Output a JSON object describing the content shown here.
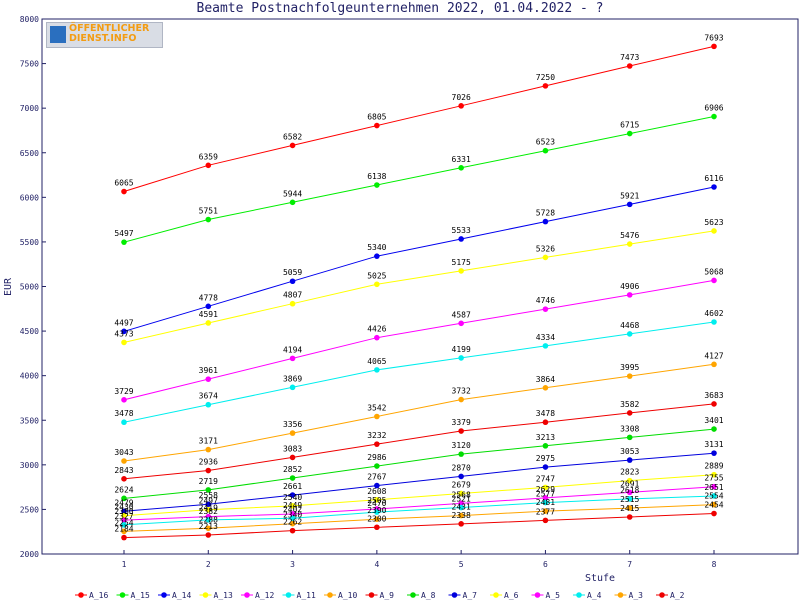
{
  "logo": {
    "line1": "ÖFFENTLICHER",
    "line2": "DIENST.INFO"
  },
  "chart_data": {
    "type": "line",
    "title": "Beamte Postnachfolgeunternehmen 2022, 01.04.2022 - ?",
    "xlabel": "Stufe",
    "ylabel": "EUR",
    "x": [
      1,
      2,
      3,
      4,
      5,
      6,
      7,
      8
    ],
    "ylim": [
      2000,
      8000
    ],
    "yticks": [
      2000,
      2500,
      3000,
      3500,
      4000,
      4500,
      5000,
      5500,
      6000,
      6500,
      7000,
      7500,
      8000
    ],
    "grid": false,
    "legend_position": "bottom",
    "series": [
      {
        "name": "A_16",
        "color": "#ff0000",
        "values": [
          6065,
          6359,
          6582,
          6805,
          7026,
          7250,
          7473,
          7693
        ]
      },
      {
        "name": "A_15",
        "color": "#00ee00",
        "values": [
          5497,
          5751,
          5944,
          6138,
          6331,
          6523,
          6715,
          6906
        ]
      },
      {
        "name": "A_14",
        "color": "#0000ee",
        "values": [
          4497,
          4778,
          5059,
          5340,
          5533,
          5728,
          5921,
          6116
        ]
      },
      {
        "name": "A_13",
        "color": "#ffff00",
        "values": [
          4373,
          4591,
          4807,
          5025,
          5175,
          5326,
          5476,
          5623
        ]
      },
      {
        "name": "A_12",
        "color": "#ff00ff",
        "values": [
          3729,
          3961,
          4194,
          4426,
          4587,
          4746,
          4906,
          5068
        ]
      },
      {
        "name": "A_11",
        "color": "#00eeee",
        "values": [
          3478,
          3674,
          3869,
          4065,
          4199,
          4334,
          4468,
          4602
        ]
      },
      {
        "name": "A_10",
        "color": "#ffa500",
        "values": [
          3043,
          3171,
          3356,
          3542,
          3732,
          3864,
          3995,
          4127
        ]
      },
      {
        "name": "A_9",
        "color": "#ee0000",
        "values": [
          2843,
          2936,
          3083,
          3232,
          3379,
          3478,
          3582,
          3683
        ]
      },
      {
        "name": "A_8",
        "color": "#00dd00",
        "values": [
          2624,
          2719,
          2852,
          2986,
          3120,
          3213,
          3308,
          3401
        ]
      },
      {
        "name": "A_7",
        "color": "#0000dd",
        "values": [
          2479,
          2558,
          2661,
          2767,
          2870,
          2975,
          3053,
          3131
        ]
      },
      {
        "name": "A_6",
        "color": "#ffff00",
        "values": [
          2430,
          2497,
          2540,
          2608,
          2679,
          2747,
          2823,
          2889
        ]
      },
      {
        "name": "A_5",
        "color": "#ff00ff",
        "values": [
          2380,
          2419,
          2449,
          2505,
          2568,
          2629,
          2691,
          2755
        ]
      },
      {
        "name": "A_4",
        "color": "#00eeee",
        "values": [
          2327,
          2382,
          2402,
          2470,
          2521,
          2577,
          2618,
          2651
        ]
      },
      {
        "name": "A_3",
        "color": "#ffa500",
        "values": [
          2254,
          2288,
          2340,
          2390,
          2431,
          2481,
          2515,
          2554
        ]
      },
      {
        "name": "A_2",
        "color": "#ee0000",
        "values": [
          2184,
          2213,
          2262,
          2300,
          2338,
          2377,
          2415,
          2454
        ]
      }
    ],
    "labels": [
      {
        "series": "A_16",
        "texts": [
          "6065",
          "6359",
          "6582",
          "6805",
          "7026",
          "7250",
          "7473",
          "7693"
        ]
      },
      {
        "series": "A_15",
        "texts": [
          "5497",
          "5751",
          "5944",
          "6138",
          "6331",
          "6523",
          "6715",
          "6906"
        ]
      },
      {
        "series": "A_14",
        "texts": [
          "4497",
          "4778",
          "5059",
          "5340",
          "5533",
          "5728",
          "5921",
          "6116"
        ]
      },
      {
        "series": "A_13",
        "texts": [
          "4373",
          "4591",
          "4807",
          "5025",
          "5175",
          "5326",
          "5476",
          "5623"
        ]
      },
      {
        "series": "A_12",
        "texts": [
          "3729",
          "3961",
          "4194",
          "4426",
          "4587",
          "4746",
          "4906",
          "5068"
        ]
      },
      {
        "series": "A_11",
        "texts": [
          "3478",
          "3674",
          "3869",
          "4065",
          "4199",
          "4334",
          "4468",
          "4602"
        ]
      },
      {
        "series": "A_10",
        "texts": [
          "3043",
          "3171",
          "3356",
          "3542",
          "3732",
          "3864",
          "3995",
          "4127"
        ]
      },
      {
        "series": "A_9",
        "texts": [
          "2843",
          "2936",
          "3083",
          "3232",
          "3379",
          "3478",
          "3582",
          "3683"
        ]
      },
      {
        "series": "A_8",
        "texts": [
          "2624",
          "2719",
          "2852",
          "2986",
          "3120",
          "3213",
          "3308",
          "3401"
        ]
      },
      {
        "series": "A_7",
        "texts": [
          "2479",
          "2558",
          "2661",
          "2767",
          "2870",
          "2975",
          "3053",
          "3131"
        ]
      },
      {
        "series": "A_6",
        "texts": [
          "2430",
          "2497",
          "2540",
          "2608",
          "2679",
          "2747",
          "2823",
          "2889"
        ]
      },
      {
        "series": "A_5",
        "texts": [
          "2380",
          "2419",
          "2449",
          "2505",
          "2568",
          "2629",
          "2691",
          "2755"
        ]
      },
      {
        "series": "A_4",
        "texts": [
          "2327",
          "2382",
          "2402",
          "2470",
          "2521",
          "2577",
          "2618",
          "2651"
        ]
      },
      {
        "series": "A_3",
        "texts": [
          "2254",
          "2288",
          "2340",
          "2390",
          "2431",
          "2481",
          "2515",
          "2554"
        ]
      },
      {
        "series": "A_2",
        "texts": [
          "2184",
          "2213",
          "2262",
          "2300",
          "2338",
          "2377",
          "2415",
          "2454"
        ]
      }
    ]
  }
}
